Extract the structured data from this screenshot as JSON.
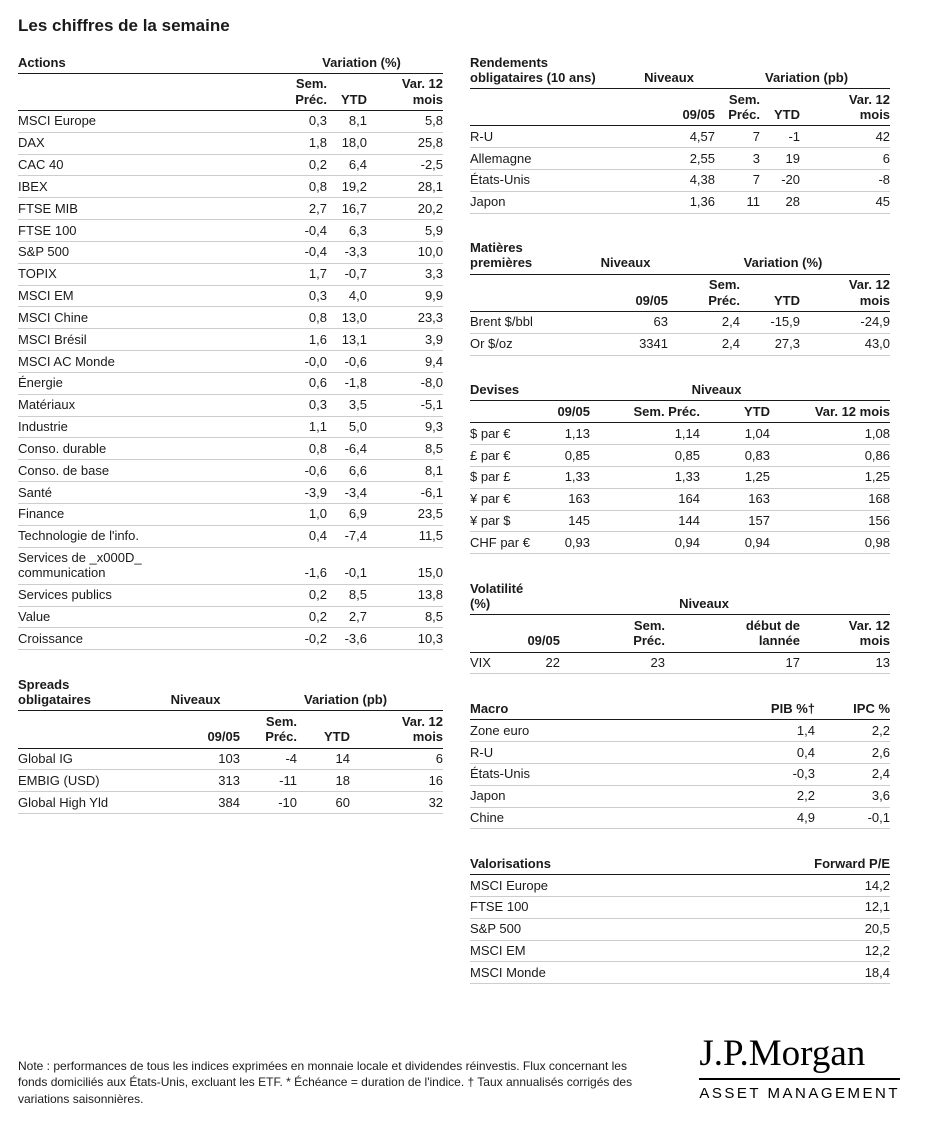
{
  "page_title": "Les chiffres de la semaine",
  "actions": {
    "title": "Actions",
    "group": "Variation (%)",
    "headers": [
      "Sem.\nPréc.",
      "YTD",
      "Var. 12\nmois"
    ],
    "rows": [
      [
        "MSCI Europe",
        "0,3",
        "8,1",
        "5,8"
      ],
      [
        "DAX",
        "1,8",
        "18,0",
        "25,8"
      ],
      [
        "CAC 40",
        "0,2",
        "6,4",
        "-2,5"
      ],
      [
        "IBEX",
        "0,8",
        "19,2",
        "28,1"
      ],
      [
        "FTSE MIB",
        "2,7",
        "16,7",
        "20,2"
      ],
      [
        "FTSE 100",
        "-0,4",
        "6,3",
        "5,9"
      ],
      [
        "S&P 500",
        "-0,4",
        "-3,3",
        "10,0"
      ],
      [
        "TOPIX",
        "1,7",
        "-0,7",
        "3,3"
      ],
      [
        "MSCI EM",
        "0,3",
        "4,0",
        "9,9"
      ],
      [
        "MSCI Chine",
        "0,8",
        "13,0",
        "23,3"
      ],
      [
        "MSCI Brésil",
        "1,6",
        "13,1",
        "3,9"
      ],
      [
        "MSCI AC Monde",
        "-0,0",
        "-0,6",
        "9,4"
      ],
      [
        "Énergie",
        "0,6",
        "-1,8",
        "-8,0"
      ],
      [
        "Matériaux",
        "0,3",
        "3,5",
        "-5,1"
      ],
      [
        "Industrie",
        "1,1",
        "5,0",
        "9,3"
      ],
      [
        "Conso. durable",
        "0,8",
        "-6,4",
        "8,5"
      ],
      [
        "Conso. de base",
        "-0,6",
        "6,6",
        "8,1"
      ],
      [
        "Santé",
        "-3,9",
        "-3,4",
        "-6,1"
      ],
      [
        "Finance",
        "1,0",
        "6,9",
        "23,5"
      ],
      [
        "Technologie de l'info.",
        "0,4",
        "-7,4",
        "11,5"
      ],
      [
        "Services de _x000D_\ncommunication",
        "-1,6",
        "-0,1",
        "15,0"
      ],
      [
        "Services publics",
        "0,2",
        "8,5",
        "13,8"
      ],
      [
        "Value",
        "0,2",
        "2,7",
        "8,5"
      ],
      [
        "Croissance",
        "-0,2",
        "-3,6",
        "10,3"
      ]
    ]
  },
  "spreads": {
    "title": "Spreads\nobligataires",
    "group_levels": "Niveaux",
    "group_variation": "Variation (pb)",
    "headers": [
      "09/05",
      "Sem.\nPréc.",
      "YTD",
      "Var. 12\nmois"
    ],
    "rows": [
      [
        "Global IG",
        "103",
        "-4",
        "14",
        "6"
      ],
      [
        "EMBIG (USD)",
        "313",
        "-11",
        "18",
        "16"
      ],
      [
        "Global High Yld",
        "384",
        "-10",
        "60",
        "32"
      ]
    ]
  },
  "rendements": {
    "title": "Rendements\nobligataires (10 ans)",
    "group_levels": "Niveaux",
    "group_variation": "Variation (pb)",
    "headers": [
      "09/05",
      "Sem.\nPréc.",
      "YTD",
      "Var. 12\nmois"
    ],
    "rows": [
      [
        "R-U",
        "4,57",
        "7",
        "-1",
        "42"
      ],
      [
        "Allemagne",
        "2,55",
        "3",
        "19",
        "6"
      ],
      [
        "États-Unis",
        "4,38",
        "7",
        "-20",
        "-8"
      ],
      [
        "Japon",
        "1,36",
        "11",
        "28",
        "45"
      ]
    ]
  },
  "matieres": {
    "title": "Matières\npremières",
    "group_levels": "Niveaux",
    "group_variation": "Variation (%)",
    "headers": [
      "09/05",
      "Sem.\nPréc.",
      "YTD",
      "Var. 12\nmois"
    ],
    "rows": [
      [
        "Brent $/bbl",
        "63",
        "2,4",
        "-15,9",
        "-24,9"
      ],
      [
        "Or $/oz",
        "3341",
        "2,4",
        "27,3",
        "43,0"
      ]
    ]
  },
  "devises": {
    "title": "Devises",
    "group": "Niveaux",
    "headers": [
      "09/05",
      "Sem. Préc.",
      "YTD",
      "Var. 12 mois"
    ],
    "rows": [
      [
        "$ par €",
        "1,13",
        "1,14",
        "1,04",
        "1,08"
      ],
      [
        "£ par €",
        "0,85",
        "0,85",
        "0,83",
        "0,86"
      ],
      [
        "$ par £",
        "1,33",
        "1,33",
        "1,25",
        "1,25"
      ],
      [
        "¥ par €",
        "163",
        "164",
        "163",
        "168"
      ],
      [
        "¥ par $",
        "145",
        "144",
        "157",
        "156"
      ],
      [
        "CHF par €",
        "0,93",
        "0,94",
        "0,94",
        "0,98"
      ]
    ]
  },
  "volatilite": {
    "title": "Volatilité\n(%)",
    "group": "Niveaux",
    "headers": [
      "09/05",
      "Sem.\nPréc.",
      "début de\nlannée",
      "Var. 12\nmois"
    ],
    "rows": [
      [
        "VIX",
        "22",
        "23",
        "17",
        "13"
      ]
    ]
  },
  "macro": {
    "title": "Macro",
    "headers": [
      "PIB %†",
      "IPC %"
    ],
    "rows": [
      [
        "Zone euro",
        "1,4",
        "2,2"
      ],
      [
        "R-U",
        "0,4",
        "2,6"
      ],
      [
        "États-Unis",
        "-0,3",
        "2,4"
      ],
      [
        "Japon",
        "2,2",
        "3,6"
      ],
      [
        "Chine",
        "4,9",
        "-0,1"
      ]
    ]
  },
  "valorisations": {
    "title": "Valorisations",
    "headers": [
      "Forward P/E"
    ],
    "rows": [
      [
        "MSCI Europe",
        "14,2"
      ],
      [
        "FTSE 100",
        "12,1"
      ],
      [
        "S&P 500",
        "20,5"
      ],
      [
        "MSCI EM",
        "12,2"
      ],
      [
        "MSCI Monde",
        "18,4"
      ]
    ]
  },
  "footer": {
    "note": "Note : performances de tous les indices exprimées en monnaie locale et dividendes réinvestis. Flux concernant les fonds domiciliés aux États-Unis, excluant les ETF. * Échéance = duration de l'indice. † Taux annualisés corrigés des variations saisonnières.",
    "logo_main": "J.P.Morgan",
    "logo_sub": "ASSET MANAGEMENT"
  }
}
